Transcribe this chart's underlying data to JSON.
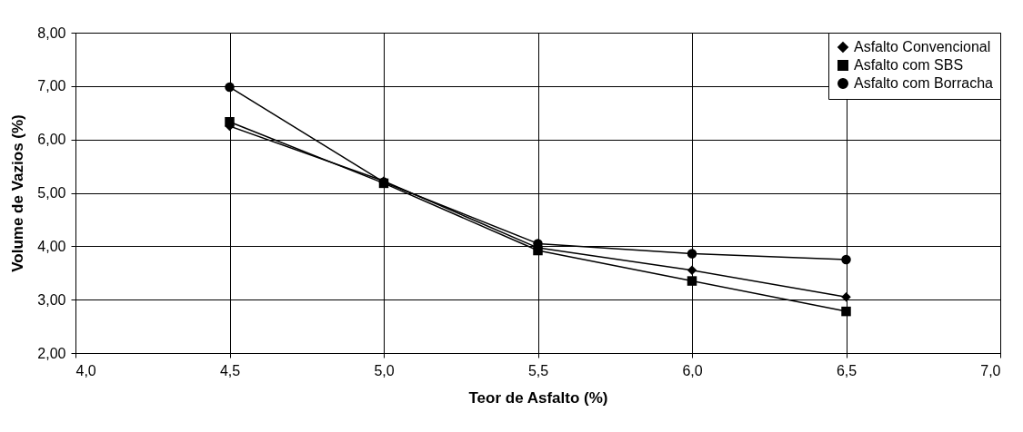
{
  "chart_data": {
    "type": "line",
    "xlabel": "Teor de Asfalto (%)",
    "ylabel": "Volume de Vazios (%)",
    "x": [
      4.5,
      5.0,
      5.5,
      6.0,
      6.5
    ],
    "series": [
      {
        "name": "Asfalto Convencional",
        "color": "#000000",
        "marker": "diamond",
        "values": [
          6.25,
          5.22,
          3.97,
          3.55,
          3.05
        ]
      },
      {
        "name": "Asfalto com SBS",
        "color": "#000000",
        "marker": "square",
        "values": [
          6.33,
          5.18,
          3.92,
          3.35,
          2.78
        ]
      },
      {
        "name": "Asfalto com Borracha",
        "color": "#000000",
        "marker": "circle",
        "values": [
          6.98,
          5.2,
          4.05,
          3.86,
          3.75
        ]
      }
    ],
    "xlim": [
      4.0,
      7.0
    ],
    "xticks": [
      {
        "value": 4.0,
        "label": "4,0"
      },
      {
        "value": 4.5,
        "label": "4,5"
      },
      {
        "value": 5.0,
        "label": "5,0"
      },
      {
        "value": 5.5,
        "label": "5,5"
      },
      {
        "value": 6.0,
        "label": "6,0"
      },
      {
        "value": 6.5,
        "label": "6,5"
      },
      {
        "value": 7.0,
        "label": "7,0"
      }
    ],
    "ylim": [
      2,
      8
    ],
    "yticks": [
      {
        "value": 2,
        "label": "2,00"
      },
      {
        "value": 3,
        "label": "3,00"
      },
      {
        "value": 4,
        "label": "4,00"
      },
      {
        "value": 5,
        "label": "5,00"
      },
      {
        "value": 6,
        "label": "6,00"
      },
      {
        "value": 7,
        "label": "7,00"
      },
      {
        "value": 8,
        "label": "8,00"
      }
    ],
    "grid": true,
    "legend": "top right",
    "line_style": "solid"
  }
}
